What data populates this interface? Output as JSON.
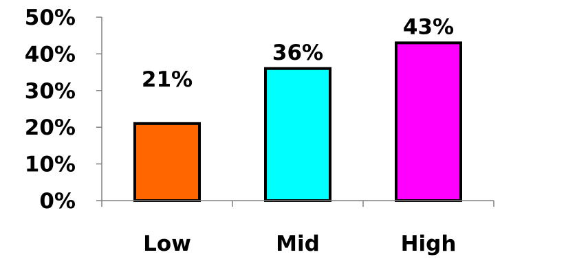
{
  "chart_data": {
    "type": "bar",
    "title": "",
    "xlabel": "",
    "ylabel": "",
    "categories": [
      "Low",
      "Mid",
      "High"
    ],
    "values": [
      21,
      36,
      43
    ],
    "data_labels": [
      "21%",
      "36%",
      "43%"
    ],
    "colors": [
      "#ff6600",
      "#00ffff",
      "#ff00ff"
    ],
    "ylim": [
      0,
      50
    ],
    "yticks": [
      0,
      10,
      20,
      30,
      40,
      50
    ],
    "ytick_labels": [
      "0%",
      "10%",
      "20%",
      "30%",
      "40%",
      "50%"
    ],
    "grid": false,
    "legend": "none"
  }
}
